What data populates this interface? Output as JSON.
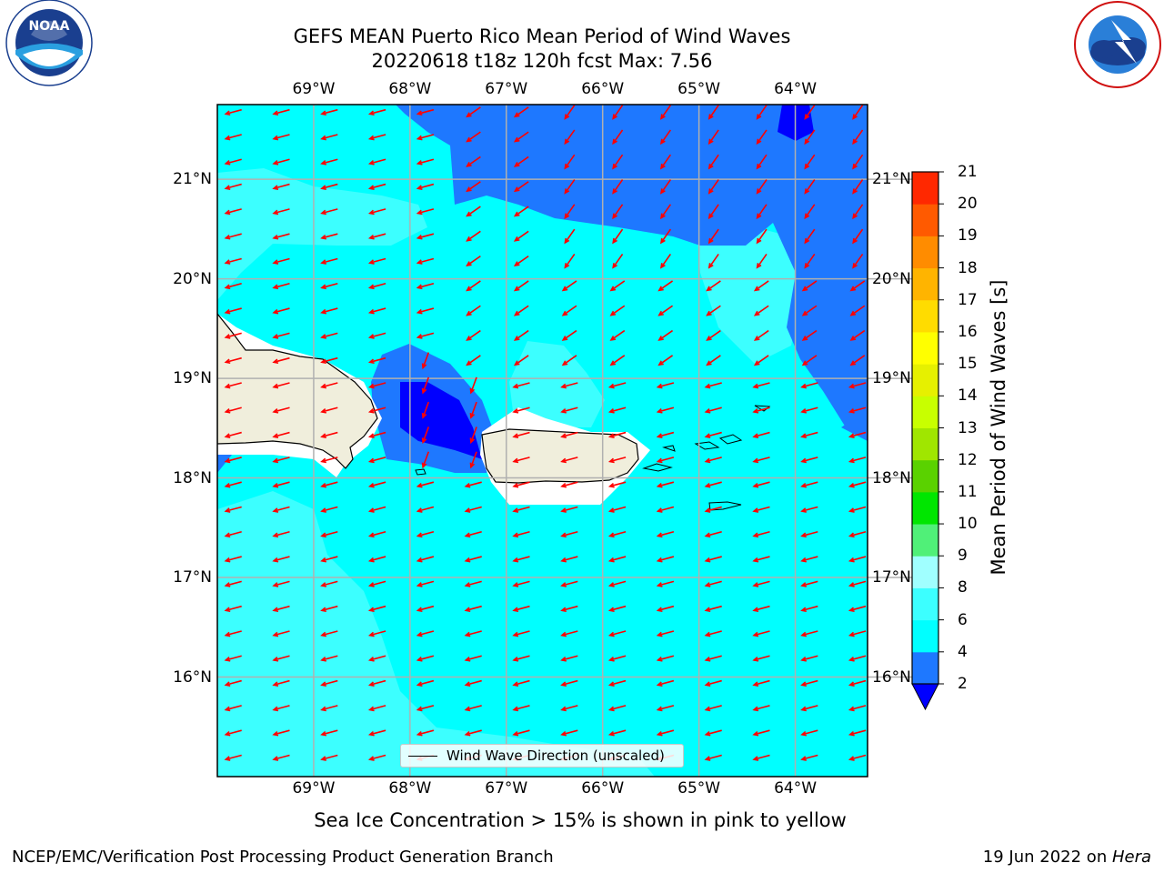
{
  "header": {
    "title_line1": "GEFS MEAN Puerto Rico Mean Period of Wind Waves",
    "title_line2": "20220618 t18z 120h fcst   Max: 7.56"
  },
  "logos": {
    "left": {
      "name": "noaa-logo",
      "text": "NOAA",
      "ring_text": "NATIONAL OCEANIC AND ATMOSPHERIC ADMINISTRATION · U.S. DEPARTMENT OF COMMERCE"
    },
    "right": {
      "name": "nws-logo",
      "ring_text": "NATIONAL WEATHER SERVICE"
    }
  },
  "map": {
    "lon_range": [
      -70.0,
      -63.25
    ],
    "lat_range": [
      15.0,
      21.75
    ],
    "lon_ticks": [
      {
        "value": -69,
        "label": "69°W"
      },
      {
        "value": -68,
        "label": "68°W"
      },
      {
        "value": -67,
        "label": "67°W"
      },
      {
        "value": -66,
        "label": "66°W"
      },
      {
        "value": -65,
        "label": "65°W"
      },
      {
        "value": -64,
        "label": "64°W"
      }
    ],
    "lat_ticks": [
      {
        "value": 21,
        "label": "21°N"
      },
      {
        "value": 20,
        "label": "20°N"
      },
      {
        "value": 19,
        "label": "19°N"
      },
      {
        "value": 18,
        "label": "18°N"
      },
      {
        "value": 17,
        "label": "17°N"
      },
      {
        "value": 16,
        "label": "16°N"
      }
    ],
    "arrow_color": "#ff0000",
    "land_color": "#f0eedc",
    "legend_label": "Wind Wave Direction (unscaled)"
  },
  "colorbar": {
    "title": "Mean Period of Wind Waves [s]",
    "levels": [
      2,
      4,
      6,
      8,
      9,
      10,
      11,
      12,
      13,
      14,
      15,
      16,
      17,
      18,
      19,
      20,
      21
    ],
    "colors": [
      "#1e78ff",
      "#00ffff",
      "#3cffff",
      "#a0ffff",
      "#50f078",
      "#00e600",
      "#5ad200",
      "#a0e600",
      "#c8ff00",
      "#e6f000",
      "#ffff00",
      "#ffdc00",
      "#ffb400",
      "#ff8c00",
      "#ff5a00",
      "#ff2800"
    ],
    "under_color": "#0000ff",
    "tick_labels": [
      "21",
      "20",
      "19",
      "18",
      "17",
      "16",
      "15",
      "14",
      "13",
      "12",
      "11",
      "10",
      "9",
      "8",
      "6",
      "4",
      "2"
    ]
  },
  "note": "Sea Ice Concentration > 15% is shown in pink to yellow",
  "footer": {
    "left": "NCEP/EMC/Verification Post Processing Product Generation Branch",
    "right_date": "19 Jun 2022 on ",
    "right_host": "Hera"
  }
}
